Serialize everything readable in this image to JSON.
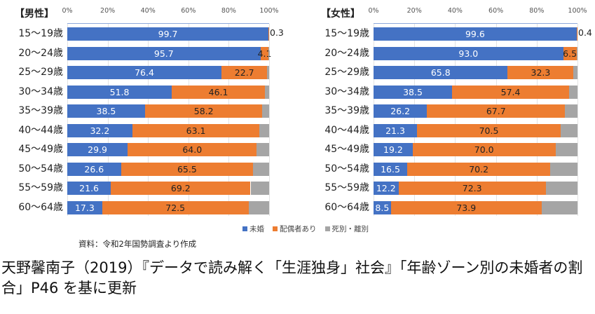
{
  "chart_data": [
    {
      "type": "bar",
      "orientation": "horizontal",
      "stacked": "percent",
      "title": "【男性】",
      "categories": [
        "15〜19歳",
        "20〜24歳",
        "25〜29歳",
        "30〜34歳",
        "35〜39歳",
        "40〜44歳",
        "45〜49歳",
        "50〜54歳",
        "55〜59歳",
        "60〜64歳"
      ],
      "x_ticks": [
        "0%",
        "20%",
        "40%",
        "60%",
        "80%",
        "100%"
      ],
      "xlim": [
        0,
        100
      ],
      "series": [
        {
          "name": "未婚",
          "color": "#4472c4",
          "values": [
            99.7,
            95.7,
            76.4,
            51.8,
            38.5,
            32.2,
            29.9,
            26.6,
            21.6,
            17.3
          ]
        },
        {
          "name": "配偶者あり",
          "color": "#ed7d31",
          "values": [
            0.3,
            4.1,
            22.7,
            46.1,
            58.2,
            63.1,
            64.0,
            65.5,
            69.2,
            72.5
          ]
        },
        {
          "name": "死別・離別",
          "color": "#a5a5a5",
          "values": [
            0.0,
            0.2,
            0.9,
            2.1,
            3.3,
            4.7,
            6.1,
            7.9,
            9.2,
            10.2
          ]
        }
      ]
    },
    {
      "type": "bar",
      "orientation": "horizontal",
      "stacked": "percent",
      "title": "【女性】",
      "categories": [
        "15〜19歳",
        "20〜24歳",
        "25〜29歳",
        "30〜34歳",
        "35〜39歳",
        "40〜44歳",
        "45〜49歳",
        "50〜54歳",
        "55〜59歳",
        "60〜64歳"
      ],
      "x_ticks": [
        "0%",
        "20%",
        "40%",
        "60%",
        "80%",
        "100%"
      ],
      "xlim": [
        0,
        100
      ],
      "series": [
        {
          "name": "未婚",
          "color": "#4472c4",
          "values": [
            99.6,
            93.0,
            65.8,
            38.5,
            26.2,
            21.3,
            19.2,
            16.5,
            12.2,
            8.5
          ]
        },
        {
          "name": "配偶者あり",
          "color": "#ed7d31",
          "values": [
            0.4,
            6.5,
            32.3,
            57.4,
            67.7,
            70.5,
            70.0,
            70.2,
            72.3,
            73.9
          ]
        },
        {
          "name": "死別・離別",
          "color": "#a5a5a5",
          "values": [
            0.0,
            0.5,
            1.9,
            4.1,
            6.1,
            8.2,
            10.8,
            13.3,
            15.5,
            17.6
          ]
        }
      ]
    }
  ],
  "legend": [
    "未婚",
    "配偶者あり",
    "死別・離別"
  ],
  "source": "資料：令和2年国勢調査より作成",
  "caption": "天野馨南子（2019）『データで読み解く「生涯独身」社会』「年齢ゾーン別の未婚者の割合」P46 を基に更新"
}
